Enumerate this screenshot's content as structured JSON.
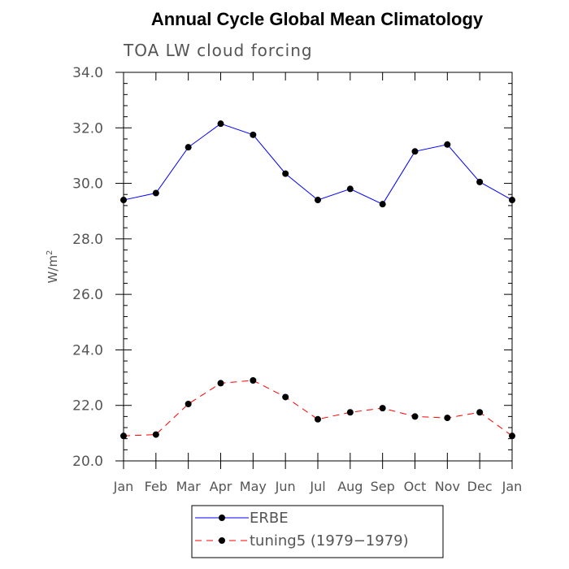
{
  "chart_data": {
    "type": "line",
    "title": "Annual Cycle Global Mean Climatology",
    "subtitle": "TOA LW cloud forcing",
    "ylabel": "W/m",
    "ylabel_sup": "2",
    "xlabel": "",
    "categories": [
      "Jan",
      "Feb",
      "Mar",
      "Apr",
      "May",
      "Jun",
      "Jul",
      "Aug",
      "Sep",
      "Oct",
      "Nov",
      "Dec",
      "Jan"
    ],
    "ylim": [
      20.0,
      34.0
    ],
    "yticks": [
      "20.0",
      "22.0",
      "24.0",
      "26.0",
      "28.0",
      "30.0",
      "32.0",
      "34.0"
    ],
    "grid": false,
    "legend_position": "bottom",
    "series": [
      {
        "name": "ERBE",
        "color": "#0000ff",
        "dash": "solid",
        "values": [
          29.4,
          29.65,
          31.3,
          32.15,
          31.75,
          30.35,
          29.4,
          29.8,
          29.25,
          31.15,
          31.4,
          30.05,
          29.4
        ]
      },
      {
        "name": "tuning5 (1979−1979)",
        "color": "#ff0000",
        "dash": "dashed",
        "values": [
          20.9,
          20.95,
          22.05,
          22.8,
          22.9,
          22.3,
          21.5,
          21.75,
          21.9,
          21.6,
          21.55,
          21.75,
          20.9
        ]
      }
    ]
  }
}
